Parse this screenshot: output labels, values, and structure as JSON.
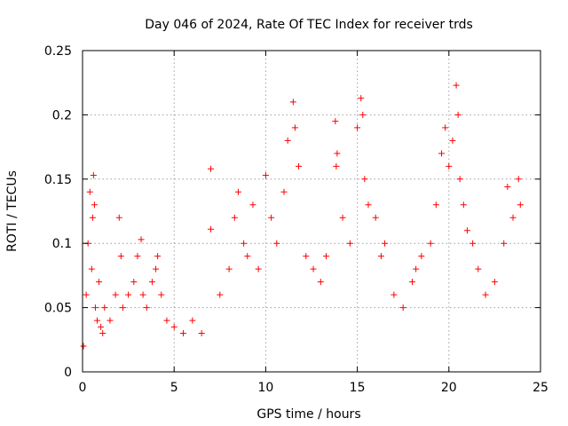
{
  "chart_data": {
    "type": "scatter",
    "title": "Day 046 of 2024, Rate Of TEC Index for receiver trds",
    "xlabel": "GPS time / hours",
    "ylabel": "ROTI / TECUs",
    "xlim": [
      0,
      25
    ],
    "ylim": [
      0,
      0.25
    ],
    "x_ticks": [
      0,
      5,
      10,
      15,
      20,
      25
    ],
    "x_tick_labels": [
      "0",
      "5",
      "10",
      "15",
      "20",
      "25"
    ],
    "y_ticks": [
      0,
      0.05,
      0.1,
      0.15,
      0.2,
      0.25
    ],
    "y_tick_labels": [
      "0",
      "0.05",
      "0.1",
      "0.15",
      "0.2",
      "0.25"
    ],
    "grid": true,
    "legend": "none",
    "marker": "plus",
    "color": "#ff0000",
    "series": [
      {
        "x": [
          0.05,
          0.2,
          0.3,
          0.4,
          0.5,
          0.55,
          0.6,
          0.65,
          0.7,
          0.8,
          0.9,
          1.0,
          1.1,
          1.2,
          1.5,
          1.8,
          2.0,
          2.1,
          2.2,
          2.5,
          2.8,
          3.0,
          3.2,
          3.3,
          3.5,
          3.8,
          4.0,
          4.1,
          4.3,
          4.6,
          5.0,
          5.5,
          6.0,
          6.5,
          7.0,
          7.0,
          7.5,
          8.0,
          8.3,
          8.5,
          8.8,
          9.0,
          9.3,
          9.6,
          10.0,
          10.3,
          10.6,
          11.0,
          11.2,
          11.5,
          11.6,
          11.8,
          12.2,
          12.6,
          13.0,
          13.3,
          13.8,
          13.85,
          13.9,
          14.2,
          14.6,
          15.0,
          15.2,
          15.3,
          15.4,
          15.6,
          16.0,
          16.3,
          16.5,
          17.0,
          17.5,
          18.0,
          18.2,
          18.5,
          19.0,
          19.3,
          19.6,
          19.8,
          20.0,
          20.2,
          20.4,
          20.5,
          20.6,
          20.8,
          21.0,
          21.3,
          21.6,
          22.0,
          22.5,
          23.0,
          23.2,
          23.5,
          23.8,
          23.9
        ],
        "y": [
          0.02,
          0.06,
          0.1,
          0.14,
          0.08,
          0.12,
          0.153,
          0.13,
          0.05,
          0.04,
          0.07,
          0.035,
          0.03,
          0.05,
          0.04,
          0.06,
          0.12,
          0.09,
          0.05,
          0.06,
          0.07,
          0.09,
          0.103,
          0.06,
          0.05,
          0.07,
          0.08,
          0.09,
          0.06,
          0.04,
          0.035,
          0.03,
          0.04,
          0.03,
          0.158,
          0.111,
          0.06,
          0.08,
          0.12,
          0.14,
          0.1,
          0.09,
          0.13,
          0.08,
          0.153,
          0.12,
          0.1,
          0.14,
          0.18,
          0.21,
          0.19,
          0.16,
          0.09,
          0.08,
          0.07,
          0.09,
          0.195,
          0.16,
          0.17,
          0.12,
          0.1,
          0.19,
          0.213,
          0.2,
          0.15,
          0.13,
          0.12,
          0.09,
          0.1,
          0.06,
          0.05,
          0.07,
          0.08,
          0.09,
          0.1,
          0.13,
          0.17,
          0.19,
          0.16,
          0.18,
          0.223,
          0.2,
          0.15,
          0.13,
          0.11,
          0.1,
          0.08,
          0.06,
          0.07,
          0.1,
          0.144,
          0.12,
          0.15,
          0.13
        ]
      }
    ]
  }
}
